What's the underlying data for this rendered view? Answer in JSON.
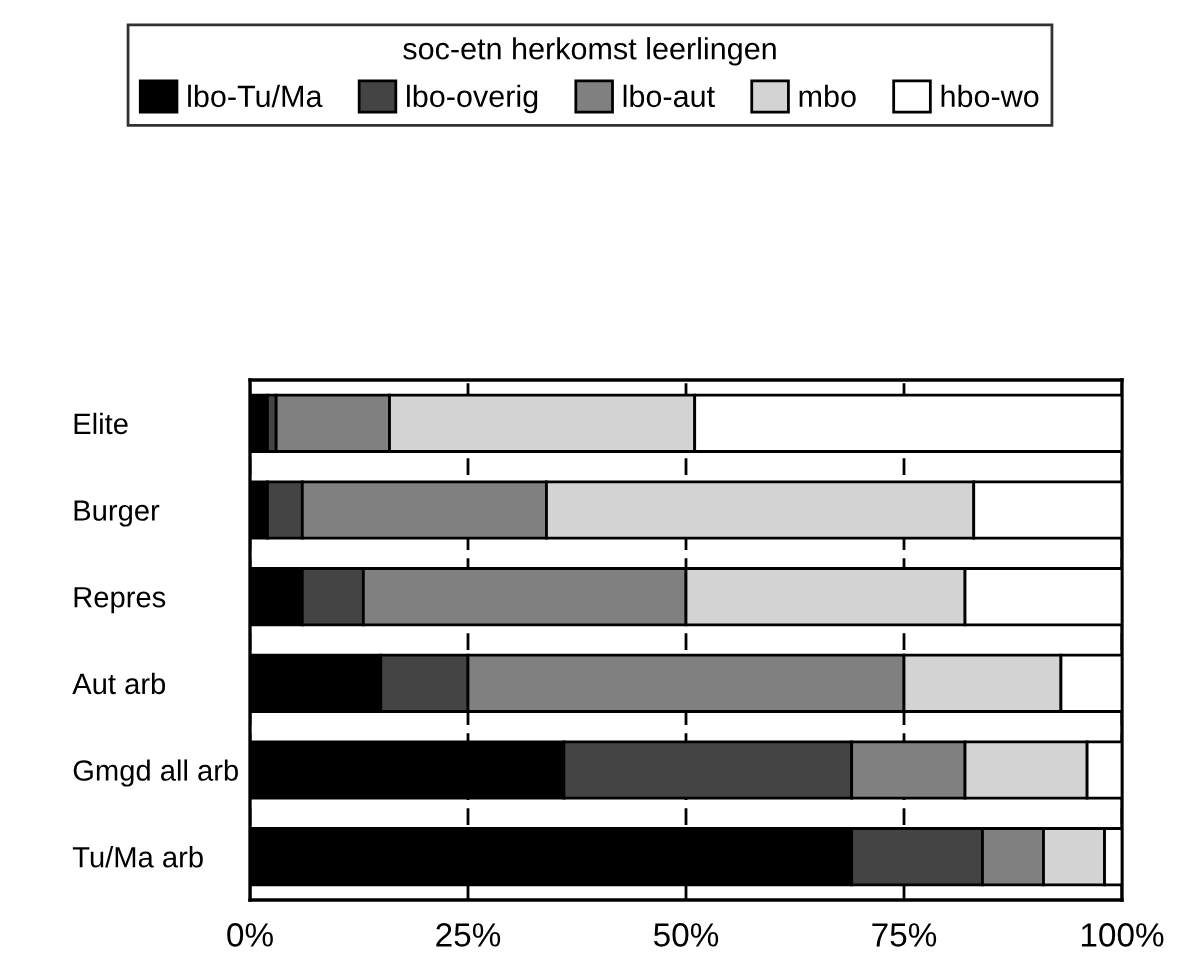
{
  "chart_data": {
    "type": "bar",
    "orientation": "horizontal",
    "stacked": true,
    "legend": "top",
    "legend_title": "soc-etn herkomst leerlingen",
    "grid": "x",
    "categories": [
      "Elite",
      "Burger",
      "Repres",
      "Aut arb",
      "Gmgd all arb",
      "Tu/Ma arb"
    ],
    "series": [
      {
        "name": "lbo-Tu/Ma",
        "color": "#000000",
        "values": [
          2,
          2,
          6,
          15,
          36,
          69
        ]
      },
      {
        "name": "lbo-overig",
        "color": "#444444",
        "values": [
          1,
          4,
          7,
          10,
          33,
          15
        ]
      },
      {
        "name": "lbo-aut",
        "color": "#808080",
        "values": [
          13,
          28,
          37,
          50,
          13,
          7
        ]
      },
      {
        "name": "mbo",
        "color": "#d3d3d3",
        "values": [
          35,
          49,
          32,
          18,
          14,
          7
        ]
      },
      {
        "name": "hbo-wo",
        "color": "#ffffff",
        "values": [
          49,
          17,
          18,
          7,
          4,
          2
        ]
      }
    ],
    "xlim": [
      0,
      100
    ],
    "xticks": [
      {
        "value": 0,
        "label": "0%"
      },
      {
        "value": 25,
        "label": "25%"
      },
      {
        "value": 50,
        "label": "50%"
      },
      {
        "value": 75,
        "label": "75%"
      },
      {
        "value": 100,
        "label": "100%"
      }
    ]
  }
}
